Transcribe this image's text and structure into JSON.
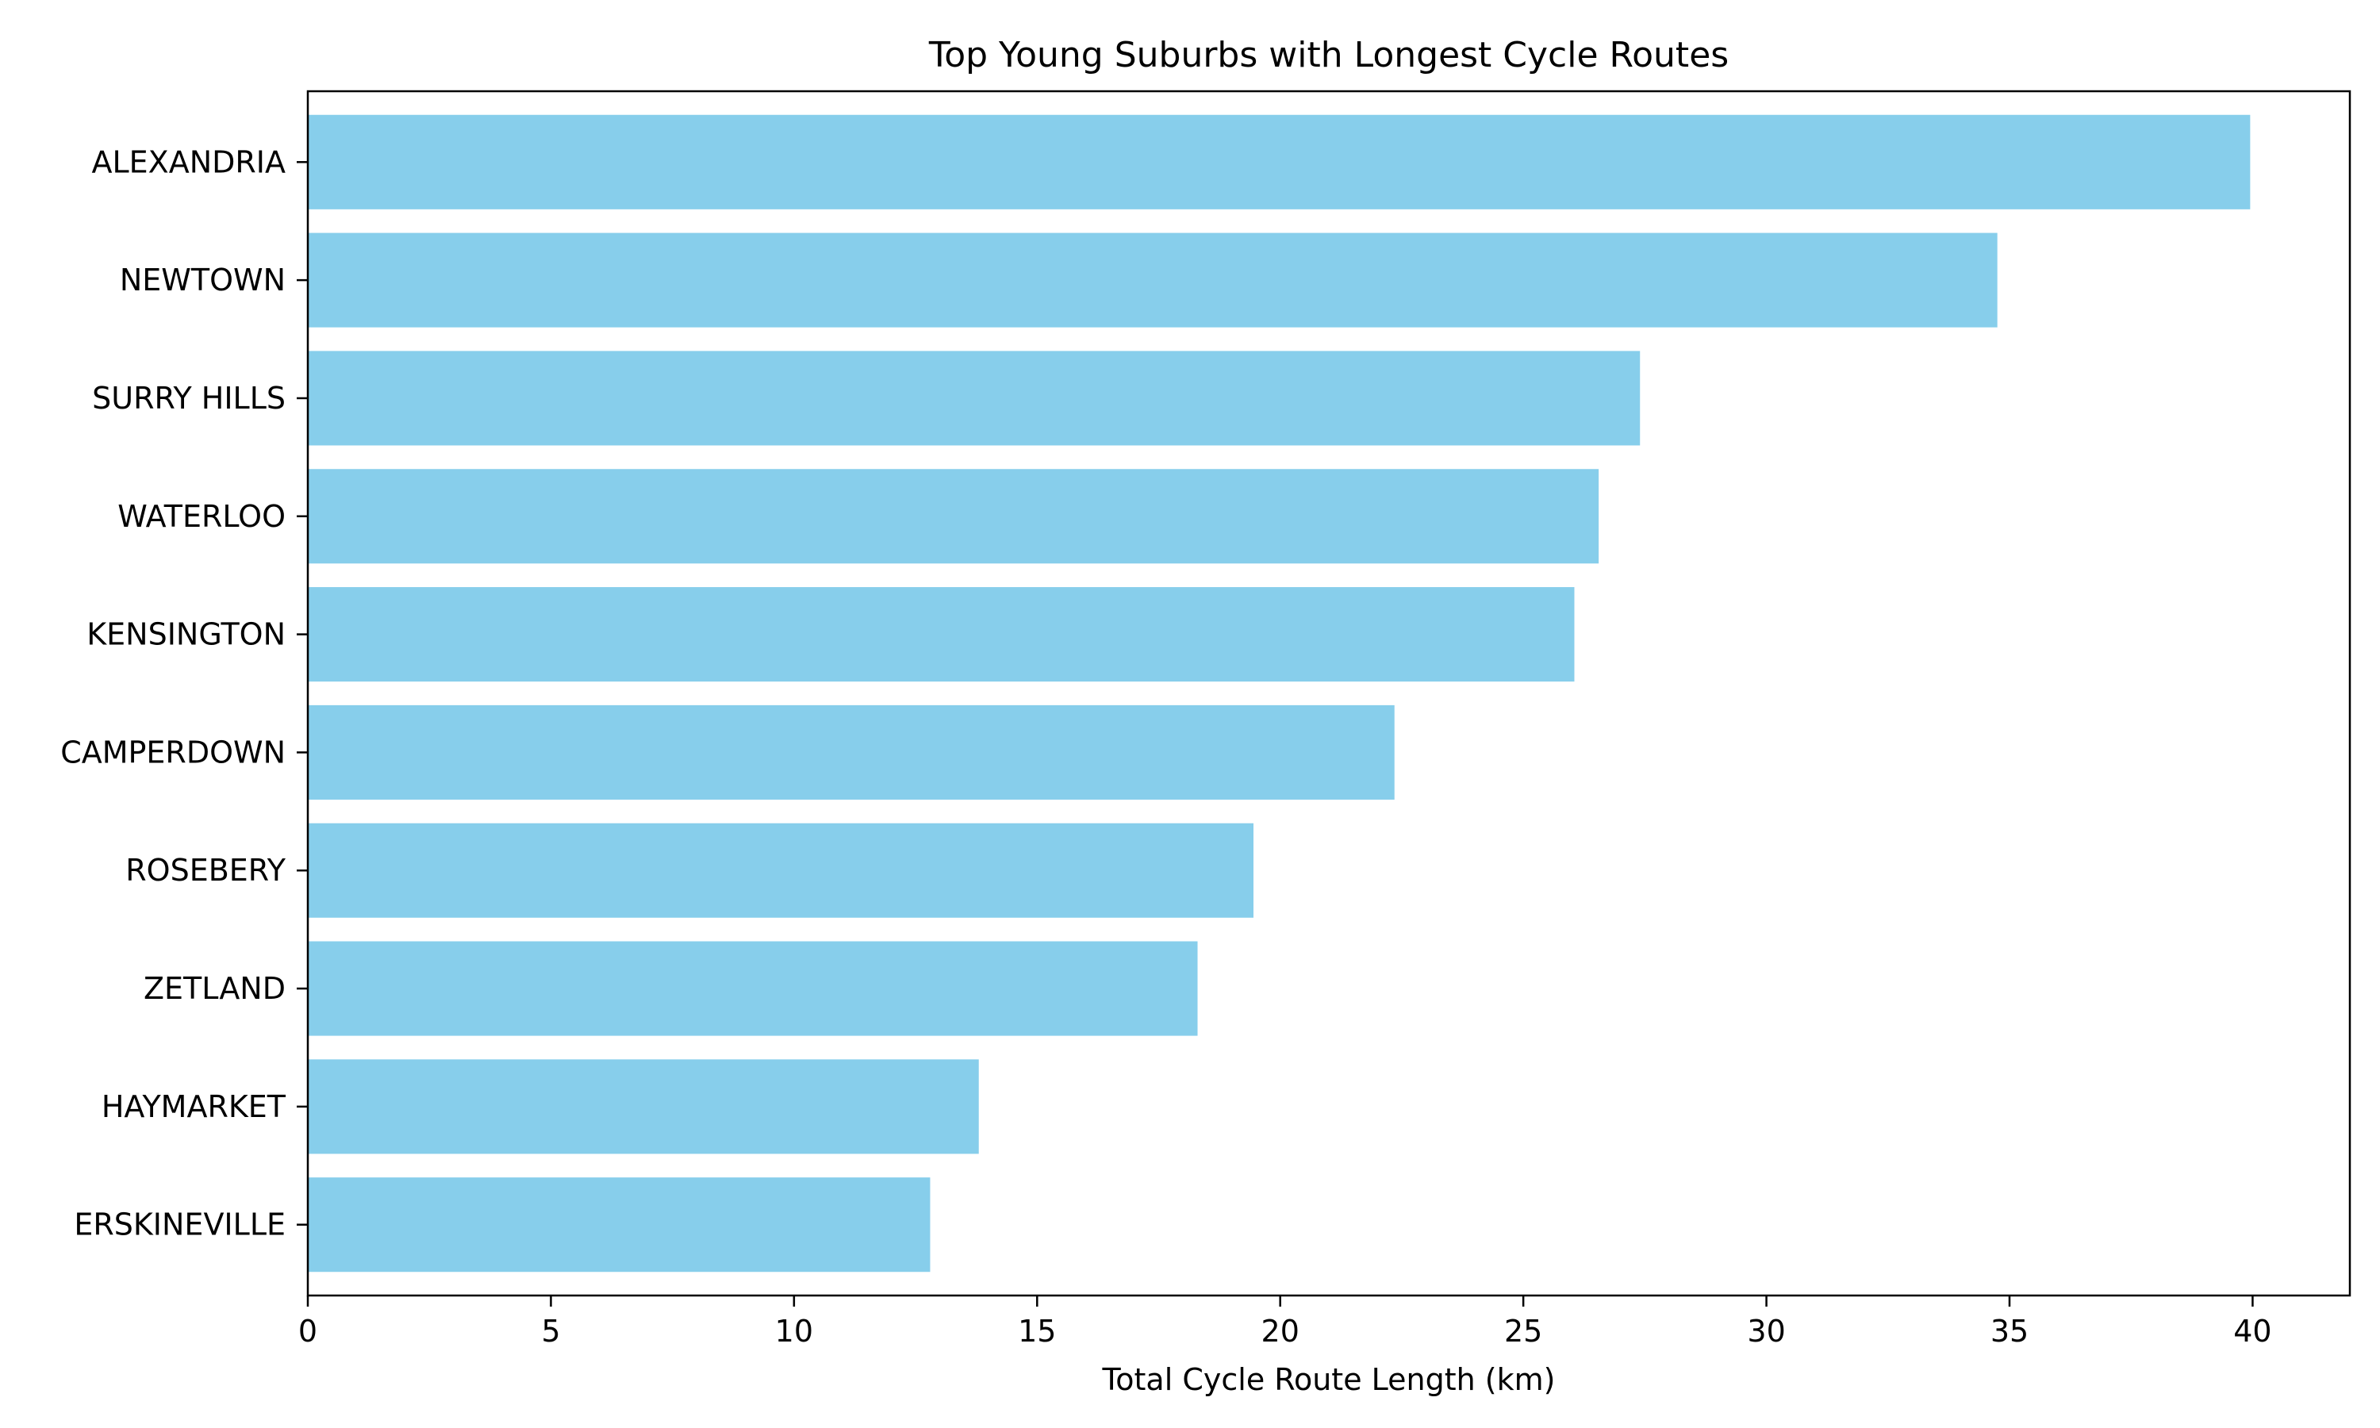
{
  "chart_data": {
    "type": "bar",
    "orientation": "horizontal",
    "title": "Top Young Suburbs with Longest Cycle Routes",
    "xlabel": "Total Cycle Route Length (km)",
    "ylabel": "",
    "categories": [
      "ALEXANDRIA",
      "NEWTOWN",
      "SURRY HILLS",
      "WATERLOO",
      "KENSINGTON",
      "CAMPERDOWN",
      "ROSEBERY",
      "ZETLAND",
      "HAYMARKET",
      "ERSKINEVILLE"
    ],
    "values": [
      39.95,
      34.75,
      27.4,
      26.55,
      26.05,
      22.35,
      19.45,
      18.3,
      13.8,
      12.8
    ],
    "xlim": [
      0,
      42
    ],
    "xticks": [
      0,
      5,
      10,
      15,
      20,
      25,
      30,
      35,
      40
    ],
    "grid": false,
    "bar_color": "#87ceeb"
  }
}
